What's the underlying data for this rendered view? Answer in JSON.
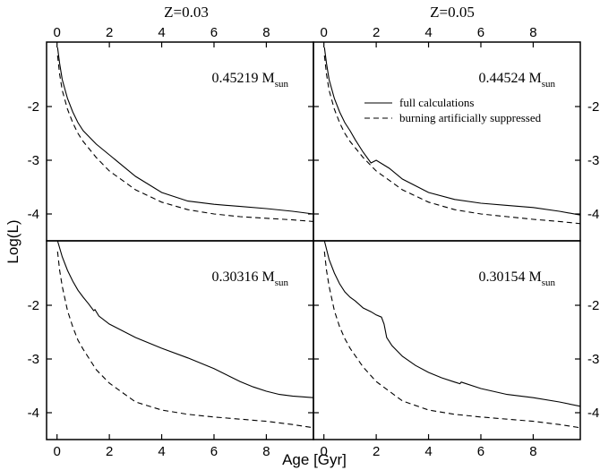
{
  "chart_data": {
    "type": "line",
    "column_titles": [
      "Z=0.03",
      "Z=0.05"
    ],
    "xlabel": "Age [Gyr]",
    "ylabel": "Log(L)",
    "xlim": [
      -0.4,
      9.8
    ],
    "ylim": [
      -4.5,
      -0.8
    ],
    "x_ticks": [
      0,
      2,
      4,
      6,
      8
    ],
    "y_ticks": [
      -2,
      -3,
      -4
    ],
    "grid": false,
    "legend": {
      "placement": "top-right panel, upper right",
      "entries": [
        {
          "label": "full calculations",
          "style": "solid"
        },
        {
          "label": "burning artificially suppressed",
          "style": "dashed"
        }
      ]
    },
    "panels": [
      {
        "row": 0,
        "col": 0,
        "mass_value": "0.45219 M",
        "mass_sub": "sun",
        "series": [
          {
            "style": "solid",
            "x": [
              0.02,
              0.1,
              0.2,
              0.4,
              0.6,
              0.8,
              1.0,
              1.5,
              2.0,
              3.0,
              4.0,
              5.0,
              6.0,
              7.0,
              8.0,
              9.0,
              9.8
            ],
            "y": [
              -0.9,
              -1.2,
              -1.5,
              -1.85,
              -2.1,
              -2.3,
              -2.45,
              -2.7,
              -2.9,
              -3.3,
              -3.6,
              -3.76,
              -3.82,
              -3.86,
              -3.9,
              -3.95,
              -4.0
            ]
          },
          {
            "style": "dashed",
            "x": [
              0.02,
              0.1,
              0.2,
              0.4,
              0.6,
              0.8,
              1.0,
              1.5,
              2.0,
              3.0,
              4.0,
              5.0,
              6.0,
              7.0,
              8.0,
              9.0,
              9.8
            ],
            "y": [
              -1.05,
              -1.4,
              -1.7,
              -2.05,
              -2.3,
              -2.5,
              -2.65,
              -2.95,
              -3.2,
              -3.55,
              -3.78,
              -3.92,
              -4.0,
              -4.05,
              -4.08,
              -4.11,
              -4.14
            ]
          }
        ]
      },
      {
        "row": 0,
        "col": 1,
        "mass_value": "0.44524 M",
        "mass_sub": "sun",
        "series": [
          {
            "style": "solid",
            "x": [
              0.02,
              0.1,
              0.2,
              0.4,
              0.6,
              0.8,
              1.0,
              1.2,
              1.5,
              1.8,
              2.0,
              2.5,
              3.0,
              4.0,
              5.0,
              6.0,
              7.0,
              8.0,
              9.0,
              9.8
            ],
            "y": [
              -0.9,
              -1.2,
              -1.5,
              -1.85,
              -2.1,
              -2.3,
              -2.45,
              -2.62,
              -2.85,
              -3.05,
              -3.0,
              -3.15,
              -3.35,
              -3.6,
              -3.73,
              -3.8,
              -3.84,
              -3.88,
              -3.95,
              -4.02
            ]
          },
          {
            "style": "dashed",
            "x": [
              0.02,
              0.1,
              0.2,
              0.4,
              0.6,
              0.8,
              1.0,
              1.5,
              2.0,
              3.0,
              4.0,
              5.0,
              6.0,
              7.0,
              8.0,
              9.0,
              9.8
            ],
            "y": [
              -1.05,
              -1.4,
              -1.7,
              -2.05,
              -2.3,
              -2.5,
              -2.65,
              -2.95,
              -3.2,
              -3.55,
              -3.78,
              -3.92,
              -4.0,
              -4.05,
              -4.1,
              -4.14,
              -4.18
            ]
          }
        ]
      },
      {
        "row": 1,
        "col": 0,
        "mass_value": "0.30316 M",
        "mass_sub": "sun",
        "series": [
          {
            "style": "solid",
            "x": [
              0.02,
              0.2,
              0.4,
              0.6,
              0.8,
              1.0,
              1.2,
              1.4,
              1.45,
              1.6,
              2.0,
              3.0,
              4.0,
              5.0,
              6.0,
              6.5,
              7.0,
              7.5,
              8.0,
              8.5,
              9.0,
              9.8
            ],
            "y": [
              -0.8,
              -1.1,
              -1.35,
              -1.55,
              -1.72,
              -1.85,
              -1.97,
              -2.1,
              -2.08,
              -2.2,
              -2.35,
              -2.6,
              -2.8,
              -2.98,
              -3.18,
              -3.3,
              -3.42,
              -3.52,
              -3.6,
              -3.66,
              -3.69,
              -3.72
            ]
          },
          {
            "style": "dashed",
            "x": [
              0.02,
              0.1,
              0.2,
              0.4,
              0.6,
              0.8,
              1.0,
              1.5,
              2.0,
              3.0,
              4.0,
              5.0,
              6.0,
              7.0,
              8.0,
              9.0,
              9.8
            ],
            "y": [
              -1.0,
              -1.35,
              -1.65,
              -2.1,
              -2.4,
              -2.65,
              -2.82,
              -3.2,
              -3.45,
              -3.8,
              -3.95,
              -4.03,
              -4.08,
              -4.12,
              -4.16,
              -4.22,
              -4.28
            ]
          }
        ]
      },
      {
        "row": 1,
        "col": 1,
        "mass_value": "0.30154 M",
        "mass_sub": "sun",
        "series": [
          {
            "style": "solid",
            "x": [
              0.02,
              0.2,
              0.4,
              0.6,
              0.8,
              1.0,
              1.2,
              1.5,
              1.8,
              2.0,
              2.2,
              2.3,
              2.4,
              2.6,
              3.0,
              3.5,
              4.0,
              4.5,
              5.0,
              5.2,
              5.25,
              6.0,
              7.0,
              8.0,
              9.0,
              9.8
            ],
            "y": [
              -0.8,
              -1.15,
              -1.4,
              -1.6,
              -1.75,
              -1.85,
              -1.92,
              -2.05,
              -2.12,
              -2.18,
              -2.22,
              -2.35,
              -2.6,
              -2.75,
              -2.95,
              -3.12,
              -3.25,
              -3.35,
              -3.43,
              -3.46,
              -3.43,
              -3.55,
              -3.66,
              -3.72,
              -3.8,
              -3.88
            ]
          },
          {
            "style": "dashed",
            "x": [
              0.02,
              0.1,
              0.2,
              0.4,
              0.6,
              0.8,
              1.0,
              1.5,
              2.0,
              3.0,
              4.0,
              5.0,
              6.0,
              7.0,
              8.0,
              9.0,
              9.8
            ],
            "y": [
              -1.0,
              -1.35,
              -1.65,
              -2.1,
              -2.4,
              -2.62,
              -2.8,
              -3.15,
              -3.42,
              -3.78,
              -3.95,
              -4.03,
              -4.08,
              -4.12,
              -4.16,
              -4.22,
              -4.28
            ]
          }
        ]
      }
    ]
  }
}
